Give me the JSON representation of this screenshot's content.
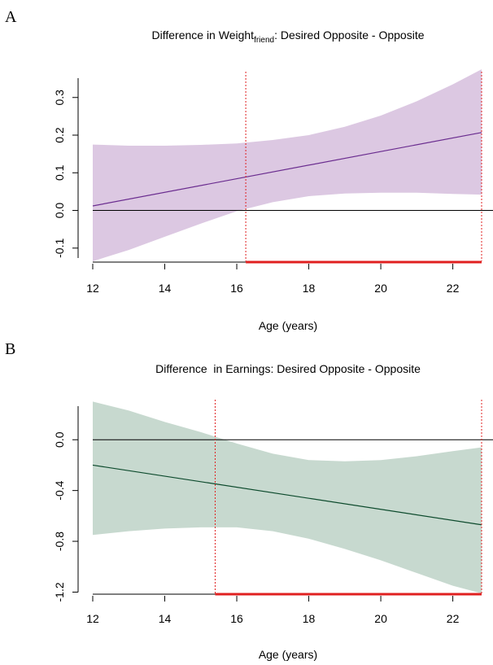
{
  "chart_data": [
    {
      "type": "line",
      "panel_label": "A",
      "title": "Difference in Weight",
      "title_subscript": "friend",
      "title_suffix": ": Desired Opposite - Opposite",
      "xlabel": "Age (years)",
      "ylabel": "",
      "xlim": [
        12,
        22.8
      ],
      "ylim": [
        -0.135,
        0.36
      ],
      "x_ticks": [
        12,
        14,
        16,
        18,
        20,
        22
      ],
      "y_ticks": [
        -0.1,
        0.0,
        0.1,
        0.2,
        0.3
      ],
      "x_tick_labels": [
        "12",
        "14",
        "16",
        "18",
        "20",
        "22"
      ],
      "y_tick_labels": [
        "-0.1",
        "0.0",
        "0.1",
        "0.2",
        "0.3"
      ],
      "series": [
        {
          "role": "estimate",
          "x": [
            12,
            22.8
          ],
          "y": [
            0.012,
            0.207
          ]
        }
      ],
      "band": {
        "x": [
          12,
          13,
          14,
          15,
          16,
          17,
          18,
          19,
          20,
          21,
          22,
          22.8
        ],
        "lower": [
          -0.135,
          -0.105,
          -0.07,
          -0.035,
          -0.002,
          0.022,
          0.038,
          0.045,
          0.047,
          0.047,
          0.044,
          0.042
        ],
        "upper": [
          0.175,
          0.172,
          0.172,
          0.174,
          0.178,
          0.187,
          0.2,
          0.222,
          0.252,
          0.29,
          0.335,
          0.375
        ]
      },
      "reference_line_y": 0.0,
      "significance_region": [
        16.25,
        22.8
      ],
      "grid": false,
      "colors": {
        "band": "#dcc8e2",
        "line": "#6a2c8f",
        "zero": "#000000",
        "sig_vline": "#e02020",
        "sig_bar": "#e02020"
      }
    },
    {
      "type": "line",
      "panel_label": "B",
      "title": "Difference  in Earnings: Desired Opposite - Opposite",
      "xlabel": "Age (years)",
      "ylabel": "",
      "xlim": [
        12,
        22.8
      ],
      "ylim": [
        -1.21,
        0.29
      ],
      "x_ticks": [
        12,
        14,
        16,
        18,
        20,
        22
      ],
      "y_ticks": [
        -1.2,
        -0.8,
        -0.4,
        0.0
      ],
      "x_tick_labels": [
        "12",
        "14",
        "16",
        "18",
        "20",
        "22"
      ],
      "y_tick_labels": [
        "-1.2",
        "-0.8",
        "-0.4",
        "0.0"
      ],
      "series": [
        {
          "role": "estimate",
          "x": [
            12,
            22.8
          ],
          "y": [
            -0.2,
            -0.67
          ]
        }
      ],
      "band": {
        "x": [
          12,
          13,
          14,
          15,
          16,
          17,
          18,
          19,
          20,
          21,
          22,
          22.8
        ],
        "lower": [
          -0.75,
          -0.72,
          -0.7,
          -0.69,
          -0.69,
          -0.72,
          -0.78,
          -0.86,
          -0.95,
          -1.05,
          -1.15,
          -1.23
        ],
        "upper": [
          0.3,
          0.23,
          0.14,
          0.06,
          -0.03,
          -0.11,
          -0.16,
          -0.17,
          -0.16,
          -0.13,
          -0.09,
          -0.06
        ]
      },
      "reference_line_y": 0.0,
      "significance_region": [
        15.4,
        22.8
      ],
      "grid": false,
      "colors": {
        "band": "#c7d9cf",
        "line": "#0c4a2c",
        "zero": "#000000",
        "sig_vline": "#e02020",
        "sig_bar": "#e02020"
      }
    }
  ]
}
